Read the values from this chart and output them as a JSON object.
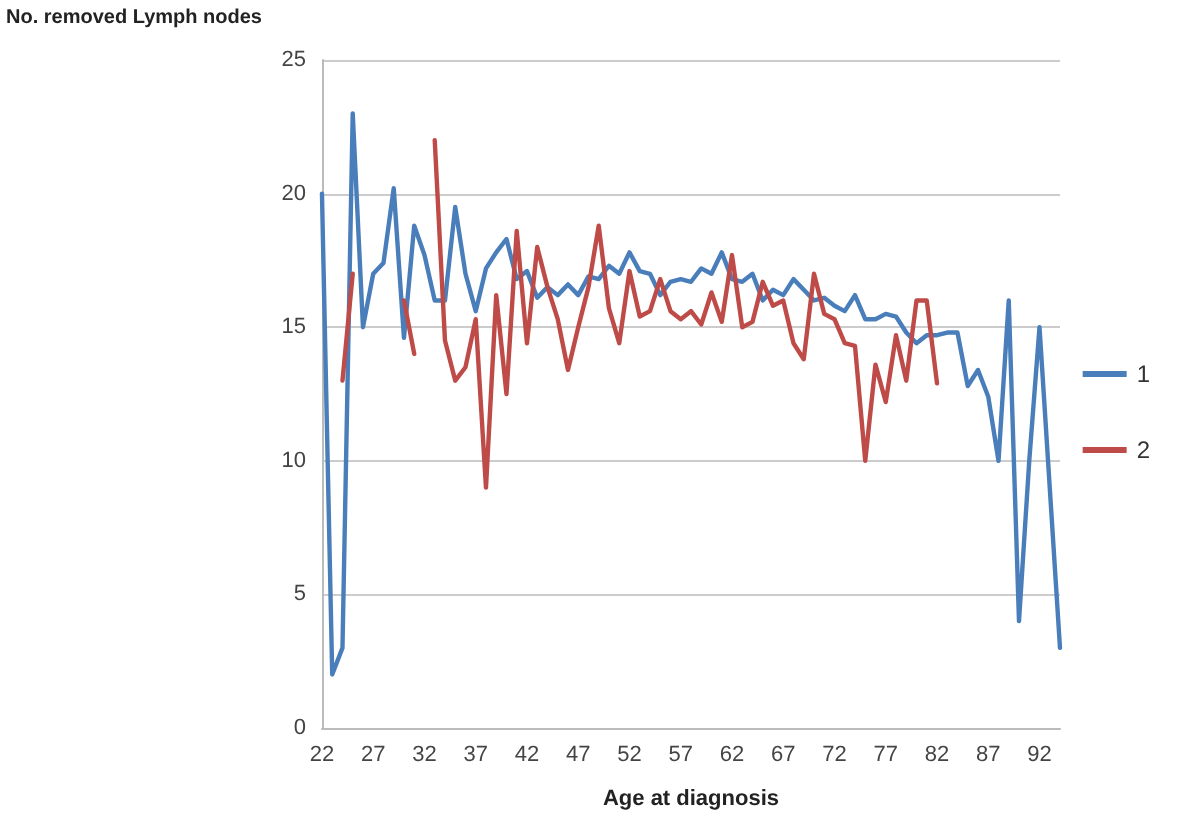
{
  "chart_data": {
    "type": "line",
    "xlabel": "Age at diagnosis",
    "ylabel": "No. removed Lymph nodes",
    "categories": [
      "22",
      null,
      null,
      null,
      null,
      "27",
      null,
      null,
      null,
      null,
      "32",
      null,
      null,
      null,
      null,
      "37",
      null,
      null,
      null,
      null,
      "42",
      null,
      null,
      null,
      null,
      "47",
      null,
      null,
      null,
      null,
      "52",
      null,
      null,
      null,
      null,
      "57",
      null,
      null,
      null,
      null,
      "62",
      null,
      null,
      null,
      null,
      "67",
      null,
      null,
      null,
      null,
      "72",
      null,
      null,
      null,
      null,
      "77",
      null,
      null,
      null,
      null,
      "82",
      null,
      null,
      null,
      null,
      "87",
      null,
      null,
      null,
      null,
      "92",
      null,
      null
    ],
    "series": [
      {
        "name": "1",
        "color": "#4a7ebb",
        "values": [
          20,
          2,
          3,
          23,
          15,
          17,
          17.4,
          20.2,
          14.6,
          18.8,
          17.7,
          16,
          16,
          19.5,
          17,
          15.6,
          17.2,
          17.8,
          18.3,
          16.8,
          17.1,
          16.1,
          16.5,
          16.2,
          16.6,
          16.2,
          16.9,
          16.8,
          17.3,
          17,
          17.8,
          17.1,
          17,
          16.2,
          16.7,
          16.8,
          16.7,
          17.2,
          17,
          17.8,
          16.8,
          16.7,
          17,
          16,
          16.4,
          16.2,
          16.8,
          16.4,
          16,
          16.1,
          15.8,
          15.6,
          16.2,
          15.3,
          15.3,
          15.5,
          15.4,
          14.8,
          14.4,
          14.7,
          14.7,
          14.8,
          14.8,
          12.8,
          13.4,
          12.4,
          10,
          16,
          4,
          10,
          15,
          9,
          3
        ]
      },
      {
        "name": "2",
        "color": "#be4b48",
        "values": [
          null,
          null,
          13,
          17,
          null,
          null,
          null,
          null,
          16,
          14,
          null,
          22,
          14.5,
          13,
          13.5,
          15.3,
          9,
          16.2,
          12.5,
          18.6,
          14.4,
          18,
          16.5,
          15.3,
          13.4,
          15,
          16.5,
          18.8,
          15.7,
          14.4,
          17.1,
          15.4,
          15.6,
          16.8,
          15.6,
          15.3,
          15.6,
          15.1,
          16.3,
          15.2,
          17.7,
          15,
          15.2,
          16.7,
          15.8,
          16,
          14.4,
          13.8,
          17,
          15.5,
          15.3,
          14.4,
          14.3,
          10,
          13.6,
          12.2,
          14.7,
          13,
          16,
          16,
          12.9,
          null,
          null,
          null,
          null,
          null,
          null,
          null,
          null,
          null,
          null,
          null,
          null
        ]
      }
    ],
    "ylim": [
      0,
      25
    ],
    "yticks": [
      0,
      5,
      10,
      15,
      20,
      25
    ],
    "grid": "y",
    "legend": "right",
    "marker": "none",
    "line_style": "solid"
  }
}
